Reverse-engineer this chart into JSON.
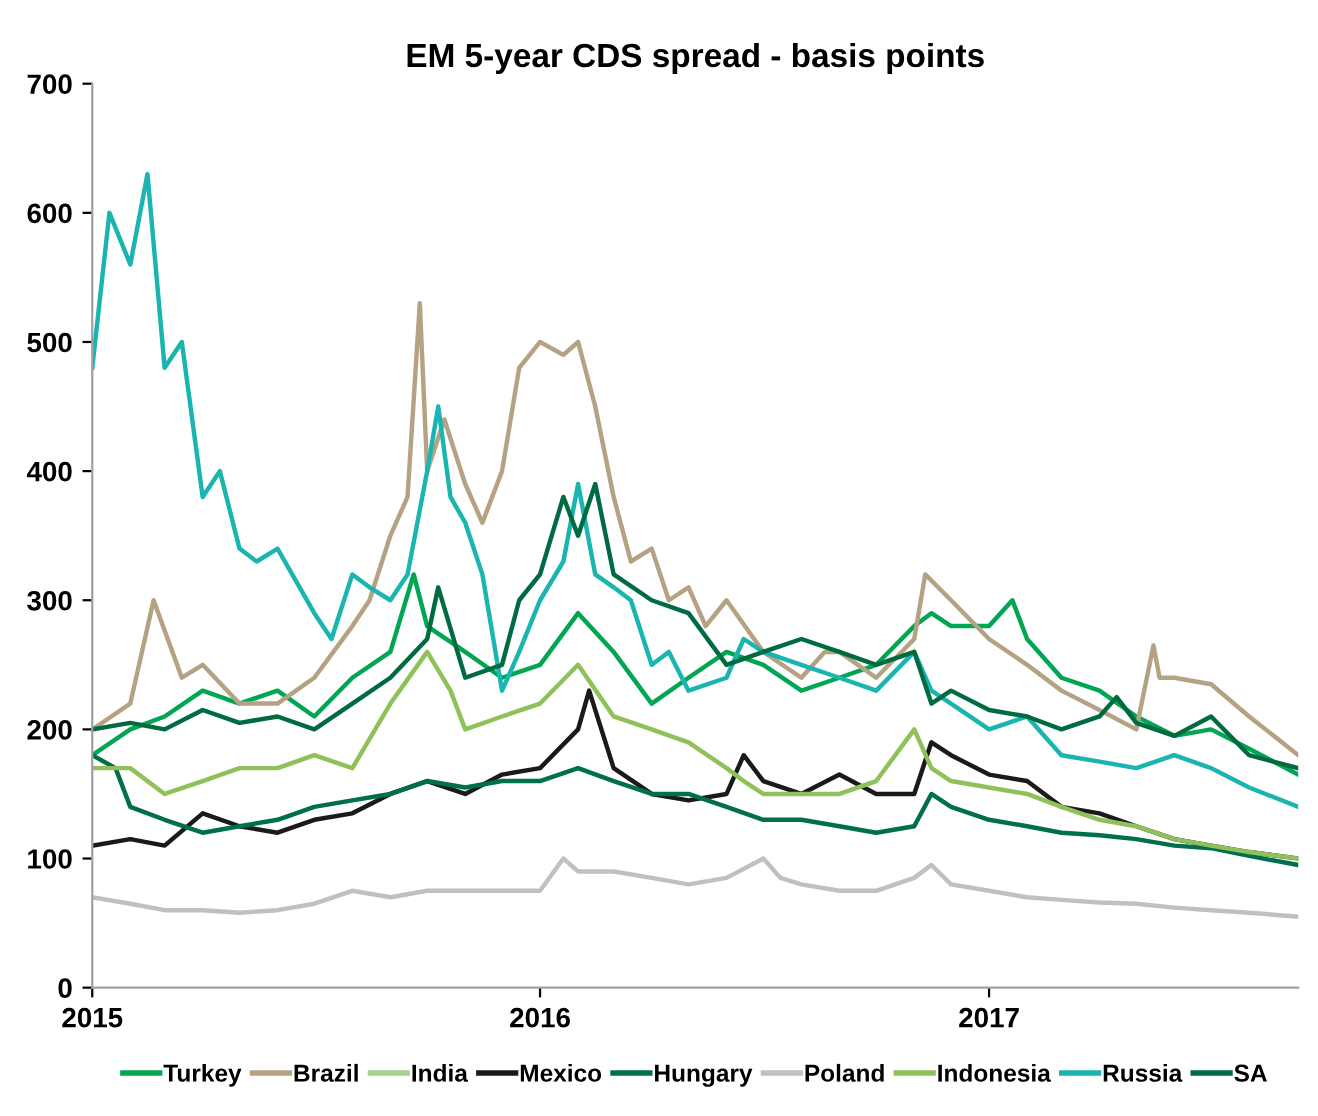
{
  "chart_data": {
    "type": "line",
    "title": "EM 5-year CDS spread - basis points",
    "xlim": [
      "2015-01-01",
      "2017-09-10"
    ],
    "xticks": [
      {
        "value": "2015-01-01",
        "label": "2015"
      },
      {
        "value": "2016-01-01",
        "label": "2016"
      },
      {
        "value": "2017-01-01",
        "label": "2017"
      }
    ],
    "ylim": [
      0,
      700
    ],
    "yticks": [
      0,
      100,
      200,
      300,
      400,
      500,
      600,
      700
    ],
    "grid": false,
    "legend": "bottom",
    "line_style": "solid",
    "marker": "none",
    "series": [
      {
        "name": "Turkey",
        "color": "#00a651",
        "x": [
          "2015-01-01",
          "2015-02-01",
          "2015-03-01",
          "2015-04-01",
          "2015-05-01",
          "2015-06-01",
          "2015-07-01",
          "2015-08-01",
          "2015-09-01",
          "2015-09-20",
          "2015-10-01",
          "2015-11-01",
          "2015-12-01",
          "2016-01-01",
          "2016-02-01",
          "2016-03-01",
          "2016-04-01",
          "2016-05-01",
          "2016-06-01",
          "2016-07-01",
          "2016-08-01",
          "2016-09-01",
          "2016-10-01",
          "2016-11-01",
          "2016-11-15",
          "2016-12-01",
          "2017-01-01",
          "2017-01-20",
          "2017-02-01",
          "2017-03-01",
          "2017-04-01",
          "2017-05-01",
          "2017-06-01",
          "2017-07-01",
          "2017-08-01",
          "2017-09-10"
        ],
        "values": [
          180,
          200,
          210,
          230,
          220,
          230,
          210,
          240,
          260,
          320,
          280,
          260,
          240,
          250,
          290,
          260,
          220,
          240,
          260,
          250,
          230,
          240,
          250,
          280,
          290,
          280,
          280,
          300,
          270,
          240,
          230,
          210,
          195,
          200,
          185,
          165
        ]
      },
      {
        "name": "Brazil",
        "color": "#b5a283",
        "x": [
          "2015-01-01",
          "2015-02-01",
          "2015-02-20",
          "2015-03-15",
          "2015-04-01",
          "2015-05-01",
          "2015-06-01",
          "2015-07-01",
          "2015-08-01",
          "2015-08-15",
          "2015-09-01",
          "2015-09-15",
          "2015-09-25",
          "2015-10-01",
          "2015-10-15",
          "2015-11-01",
          "2015-11-15",
          "2015-12-01",
          "2015-12-15",
          "2016-01-01",
          "2016-01-20",
          "2016-02-01",
          "2016-02-15",
          "2016-03-01",
          "2016-03-15",
          "2016-04-01",
          "2016-04-15",
          "2016-05-01",
          "2016-05-15",
          "2016-06-01",
          "2016-07-01",
          "2016-08-01",
          "2016-08-20",
          "2016-09-01",
          "2016-10-01",
          "2016-11-01",
          "2016-11-10",
          "2016-12-01",
          "2017-01-01",
          "2017-02-01",
          "2017-03-01",
          "2017-04-01",
          "2017-05-01",
          "2017-05-15",
          "2017-05-20",
          "2017-06-01",
          "2017-07-01",
          "2017-08-01",
          "2017-09-10"
        ],
        "values": [
          200,
          220,
          300,
          240,
          250,
          220,
          220,
          240,
          280,
          300,
          350,
          380,
          530,
          400,
          440,
          390,
          360,
          400,
          480,
          500,
          490,
          500,
          450,
          380,
          330,
          340,
          300,
          310,
          280,
          300,
          260,
          240,
          260,
          260,
          240,
          270,
          320,
          300,
          270,
          250,
          230,
          215,
          200,
          265,
          240,
          240,
          235,
          210,
          180
        ]
      },
      {
        "name": "India",
        "color": "#a9d08e"
      },
      {
        "name": "Mexico",
        "color": "#1a1a1a",
        "x": [
          "2015-01-01",
          "2015-02-01",
          "2015-03-01",
          "2015-04-01",
          "2015-05-01",
          "2015-06-01",
          "2015-07-01",
          "2015-08-01",
          "2015-09-01",
          "2015-10-01",
          "2015-11-01",
          "2015-12-01",
          "2016-01-01",
          "2016-02-01",
          "2016-02-10",
          "2016-03-01",
          "2016-04-01",
          "2016-05-01",
          "2016-06-01",
          "2016-06-15",
          "2016-07-01",
          "2016-08-01",
          "2016-09-01",
          "2016-10-01",
          "2016-11-01",
          "2016-11-15",
          "2016-12-01",
          "2017-01-01",
          "2017-02-01",
          "2017-03-01",
          "2017-04-01",
          "2017-05-01",
          "2017-06-01",
          "2017-07-01",
          "2017-08-01",
          "2017-09-10"
        ],
        "values": [
          110,
          115,
          110,
          135,
          125,
          120,
          130,
          135,
          150,
          160,
          150,
          165,
          170,
          200,
          230,
          170,
          150,
          145,
          150,
          180,
          160,
          150,
          165,
          150,
          150,
          190,
          180,
          165,
          160,
          140,
          135,
          125,
          115,
          110,
          105,
          100
        ]
      },
      {
        "name": "Hungary",
        "color": "#00704a",
        "x": [
          "2015-01-01",
          "2015-01-20",
          "2015-02-01",
          "2015-03-01",
          "2015-04-01",
          "2015-05-01",
          "2015-06-01",
          "2015-07-01",
          "2015-08-01",
          "2015-09-01",
          "2015-10-01",
          "2015-11-01",
          "2015-12-01",
          "2016-01-01",
          "2016-02-01",
          "2016-03-01",
          "2016-04-01",
          "2016-05-01",
          "2016-06-01",
          "2016-07-01",
          "2016-08-01",
          "2016-09-01",
          "2016-10-01",
          "2016-11-01",
          "2016-11-15",
          "2016-12-01",
          "2017-01-01",
          "2017-02-01",
          "2017-03-01",
          "2017-04-01",
          "2017-05-01",
          "2017-06-01",
          "2017-07-01",
          "2017-08-01",
          "2017-09-10"
        ],
        "values": [
          180,
          170,
          140,
          130,
          120,
          125,
          130,
          140,
          145,
          150,
          160,
          155,
          160,
          160,
          170,
          160,
          150,
          150,
          140,
          130,
          130,
          125,
          120,
          125,
          150,
          140,
          130,
          125,
          120,
          118,
          115,
          110,
          108,
          102,
          95
        ]
      },
      {
        "name": "Poland",
        "color": "#c0c0c0",
        "x": [
          "2015-01-01",
          "2015-02-01",
          "2015-03-01",
          "2015-04-01",
          "2015-05-01",
          "2015-06-01",
          "2015-07-01",
          "2015-08-01",
          "2015-09-01",
          "2015-10-01",
          "2015-11-01",
          "2015-12-01",
          "2016-01-01",
          "2016-01-20",
          "2016-02-01",
          "2016-03-01",
          "2016-04-01",
          "2016-05-01",
          "2016-06-01",
          "2016-07-01",
          "2016-07-15",
          "2016-08-01",
          "2016-09-01",
          "2016-10-01",
          "2016-11-01",
          "2016-11-15",
          "2016-12-01",
          "2017-01-01",
          "2017-02-01",
          "2017-03-01",
          "2017-04-01",
          "2017-05-01",
          "2017-06-01",
          "2017-07-01",
          "2017-08-01",
          "2017-09-10"
        ],
        "values": [
          70,
          65,
          60,
          60,
          58,
          60,
          65,
          75,
          70,
          75,
          75,
          75,
          75,
          100,
          90,
          90,
          85,
          80,
          85,
          100,
          85,
          80,
          75,
          75,
          85,
          95,
          80,
          75,
          70,
          68,
          66,
          65,
          62,
          60,
          58,
          55
        ]
      },
      {
        "name": "Indonesia",
        "color": "#8fc15b",
        "x": [
          "2015-01-01",
          "2015-02-01",
          "2015-03-01",
          "2015-04-01",
          "2015-05-01",
          "2015-06-01",
          "2015-07-01",
          "2015-08-01",
          "2015-09-01",
          "2015-10-01",
          "2015-10-20",
          "2015-11-01",
          "2015-12-01",
          "2016-01-01",
          "2016-02-01",
          "2016-03-01",
          "2016-04-01",
          "2016-05-01",
          "2016-06-01",
          "2016-06-15",
          "2016-07-01",
          "2016-08-01",
          "2016-09-01",
          "2016-10-01",
          "2016-11-01",
          "2016-11-15",
          "2016-12-01",
          "2017-01-01",
          "2017-02-01",
          "2017-03-01",
          "2017-04-01",
          "2017-05-01",
          "2017-06-01",
          "2017-07-01",
          "2017-08-01",
          "2017-09-10"
        ],
        "values": [
          170,
          170,
          150,
          160,
          170,
          170,
          180,
          170,
          220,
          260,
          230,
          200,
          210,
          220,
          250,
          210,
          200,
          190,
          170,
          160,
          150,
          150,
          150,
          160,
          200,
          170,
          160,
          155,
          150,
          140,
          130,
          125,
          115,
          110,
          105,
          100
        ]
      },
      {
        "name": "Russia",
        "color": "#1ab5b0",
        "x": [
          "2015-01-01",
          "2015-01-15",
          "2015-02-01",
          "2015-02-15",
          "2015-03-01",
          "2015-03-15",
          "2015-04-01",
          "2015-04-15",
          "2015-05-01",
          "2015-05-15",
          "2015-06-01",
          "2015-07-01",
          "2015-07-15",
          "2015-08-01",
          "2015-08-15",
          "2015-09-01",
          "2015-09-15",
          "2015-10-01",
          "2015-10-10",
          "2015-10-20",
          "2015-11-01",
          "2015-11-15",
          "2015-12-01",
          "2015-12-15",
          "2016-01-01",
          "2016-01-20",
          "2016-02-01",
          "2016-02-15",
          "2016-03-01",
          "2016-03-15",
          "2016-04-01",
          "2016-04-15",
          "2016-05-01",
          "2016-06-01",
          "2016-06-15",
          "2016-07-01",
          "2016-08-01",
          "2016-09-01",
          "2016-10-01",
          "2016-11-01",
          "2016-11-15",
          "2016-12-01",
          "2017-01-01",
          "2017-02-01",
          "2017-03-01",
          "2017-04-01",
          "2017-05-01",
          "2017-06-01",
          "2017-07-01",
          "2017-08-01",
          "2017-09-10"
        ],
        "values": [
          480,
          600,
          560,
          630,
          480,
          500,
          380,
          400,
          340,
          330,
          340,
          290,
          270,
          320,
          310,
          300,
          320,
          400,
          450,
          380,
          360,
          320,
          230,
          260,
          300,
          330,
          390,
          320,
          310,
          300,
          250,
          260,
          230,
          240,
          270,
          260,
          250,
          240,
          230,
          260,
          230,
          220,
          200,
          210,
          180,
          175,
          170,
          180,
          170,
          155,
          140
        ]
      },
      {
        "name": "SA",
        "color": "#006b40",
        "x": [
          "2015-01-01",
          "2015-02-01",
          "2015-03-01",
          "2015-04-01",
          "2015-05-01",
          "2015-06-01",
          "2015-07-01",
          "2015-08-01",
          "2015-09-01",
          "2015-10-01",
          "2015-10-10",
          "2015-11-01",
          "2015-12-01",
          "2015-12-15",
          "2016-01-01",
          "2016-01-20",
          "2016-02-01",
          "2016-02-15",
          "2016-03-01",
          "2016-04-01",
          "2016-05-01",
          "2016-06-01",
          "2016-07-01",
          "2016-08-01",
          "2016-09-01",
          "2016-10-01",
          "2016-11-01",
          "2016-11-15",
          "2016-12-01",
          "2017-01-01",
          "2017-02-01",
          "2017-03-01",
          "2017-04-01",
          "2017-04-15",
          "2017-05-01",
          "2017-06-01",
          "2017-07-01",
          "2017-08-01",
          "2017-09-10"
        ],
        "values": [
          200,
          205,
          200,
          215,
          205,
          210,
          200,
          220,
          240,
          270,
          310,
          240,
          250,
          300,
          320,
          380,
          350,
          390,
          320,
          300,
          290,
          250,
          260,
          270,
          260,
          250,
          260,
          220,
          230,
          215,
          210,
          200,
          210,
          225,
          205,
          195,
          210,
          180,
          170
        ]
      }
    ]
  }
}
